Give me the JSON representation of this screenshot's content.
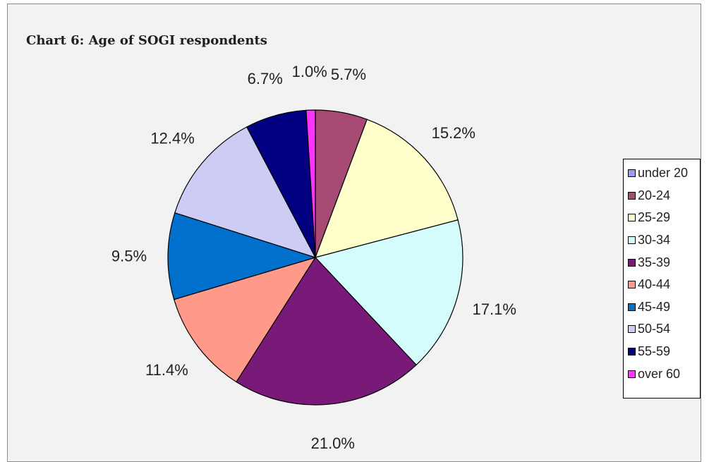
{
  "chart_data": {
    "type": "pie",
    "title": "Chart 6: Age of SOGI respondents",
    "categories": [
      "under 20",
      "20-24",
      "25-29",
      "30-34",
      "35-39",
      "40-44",
      "45-49",
      "50-54",
      "55-59",
      "over 60"
    ],
    "values": [
      0.0,
      5.7,
      15.2,
      17.1,
      21.0,
      11.4,
      9.5,
      12.4,
      6.7,
      1.0
    ],
    "labels": [
      "",
      "5.7%",
      "15.2%",
      "17.1%",
      "21.0%",
      "11.4%",
      "9.5%",
      "12.4%",
      "6.7%",
      "1.0%"
    ],
    "colors": [
      "#9999ff",
      "#a64a73",
      "#ffffcc",
      "#d4fcfc",
      "#7a1a78",
      "#ff9a8a",
      "#0070cc",
      "#ccccf5",
      "#000080",
      "#ff33ff"
    ],
    "legend_position": "right",
    "start_angle": "top",
    "direction": "clockwise"
  }
}
